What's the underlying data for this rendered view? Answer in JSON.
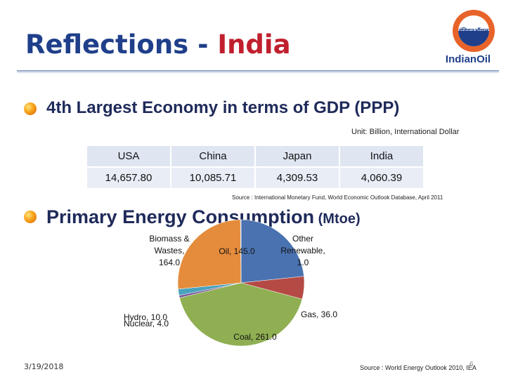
{
  "header": {
    "title_part1": "Reflections",
    "title_sep": " - ",
    "title_part2": "India",
    "logo_hindi": "इंडियनऑयल",
    "logo_name": "IndianOil"
  },
  "colors": {
    "title": "#1f3f8a",
    "accent": "#c0202e"
  },
  "section1": {
    "bullet_icon": "orange-sphere-bullet",
    "heading": "4th Largest  Economy in terms of GDP (PPP)",
    "unit": "Unit: Billion, International Dollar",
    "table": {
      "headers": [
        "USA",
        "China",
        "Japan",
        "India"
      ],
      "values": [
        "14,657.80",
        "10,085.71",
        "4,309.53",
        "4,060.39"
      ]
    },
    "source": "Source : International Monetary Fund, World Economic Outlook Database, April 2011"
  },
  "section2": {
    "bullet_icon": "orange-sphere-bullet",
    "heading": "Primary Energy Consumption",
    "heading_unit": " (Mtoe)"
  },
  "chart_data": {
    "type": "pie",
    "title": "Primary Energy Consumption (Mtoe)",
    "slices": [
      {
        "label": "Oil",
        "value": 145.0,
        "text": "Oil, 145.0",
        "color": "#4a72b0"
      },
      {
        "label": "Gas",
        "value": 36.0,
        "text": "Gas, 36.0",
        "color": "#b54a45"
      },
      {
        "label": "Coal",
        "value": 261.0,
        "text": "Coal, 261.0",
        "color": "#8faf52"
      },
      {
        "label": "Nuclear",
        "value": 4.0,
        "text": "Nuclear, 4.0",
        "color": "#7a5b9a"
      },
      {
        "label": "Hydro",
        "value": 10.0,
        "text": "Hydro, 10.0",
        "color": "#4aa3bd"
      },
      {
        "label": "Biomass & Wastes",
        "value": 164.0,
        "text": "Biomass & Wastes, 164.0",
        "color": "#e48c3c"
      },
      {
        "label": "Other Renewable",
        "value": 1.0,
        "text": "Other Renewable, 1.0",
        "color": "#9fb4d8"
      }
    ]
  },
  "labels": {
    "biomass": [
      "Biomass &",
      "Wastes,",
      "164.0"
    ],
    "oil": "Oil, 145.0",
    "other": [
      "Other",
      "Renewable,",
      "1.0"
    ],
    "gas": "Gas, 36.0",
    "coal": "Coal, 261.0",
    "hydro": "Hydro, 10.0",
    "nuclear": "Nuclear, 4.0"
  },
  "footer": {
    "date": "3/19/2018",
    "source": "Source : World Energy Outlook 2010, IEA",
    "page_number": "6"
  }
}
